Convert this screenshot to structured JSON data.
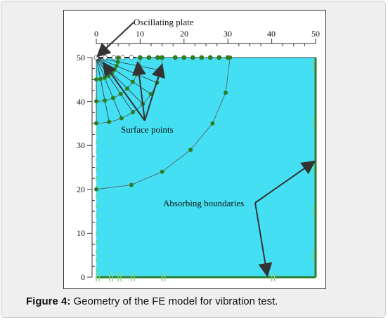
{
  "figure": {
    "caption_label": "Figure 4:",
    "caption_text": "Geometry of the FE model for vibration test."
  },
  "annotations": {
    "oscillating_plate": "Oscillating plate",
    "surface_points": "Surface points",
    "absorbing_boundaries": "Absorbing boundaries"
  },
  "axes": {
    "x_ticks": [
      "0",
      "10",
      "20",
      "30",
      "40",
      "50"
    ],
    "y_ticks": [
      "50",
      "40",
      "30",
      "20",
      "10",
      "0"
    ]
  },
  "colors": {
    "domain_fill": "#45dff4",
    "boundary": "#2f7d2f",
    "points": "#2e7d1f"
  },
  "chart_data": {
    "type": "scatter",
    "domain": {
      "x": [
        0,
        50
      ],
      "y": [
        0,
        50
      ]
    },
    "surface_points_x": [
      0,
      2,
      4,
      6,
      8,
      10,
      12,
      14,
      15,
      18,
      20,
      22,
      24,
      26,
      28,
      30
    ],
    "arc_radii": [
      5,
      10,
      15,
      30
    ],
    "outer_arc_points": [
      [
        0,
        20
      ],
      [
        8,
        21
      ],
      [
        15,
        24
      ],
      [
        21.5,
        29
      ],
      [
        26.5,
        35
      ],
      [
        29.5,
        42
      ],
      [
        30.5,
        50
      ]
    ]
  }
}
